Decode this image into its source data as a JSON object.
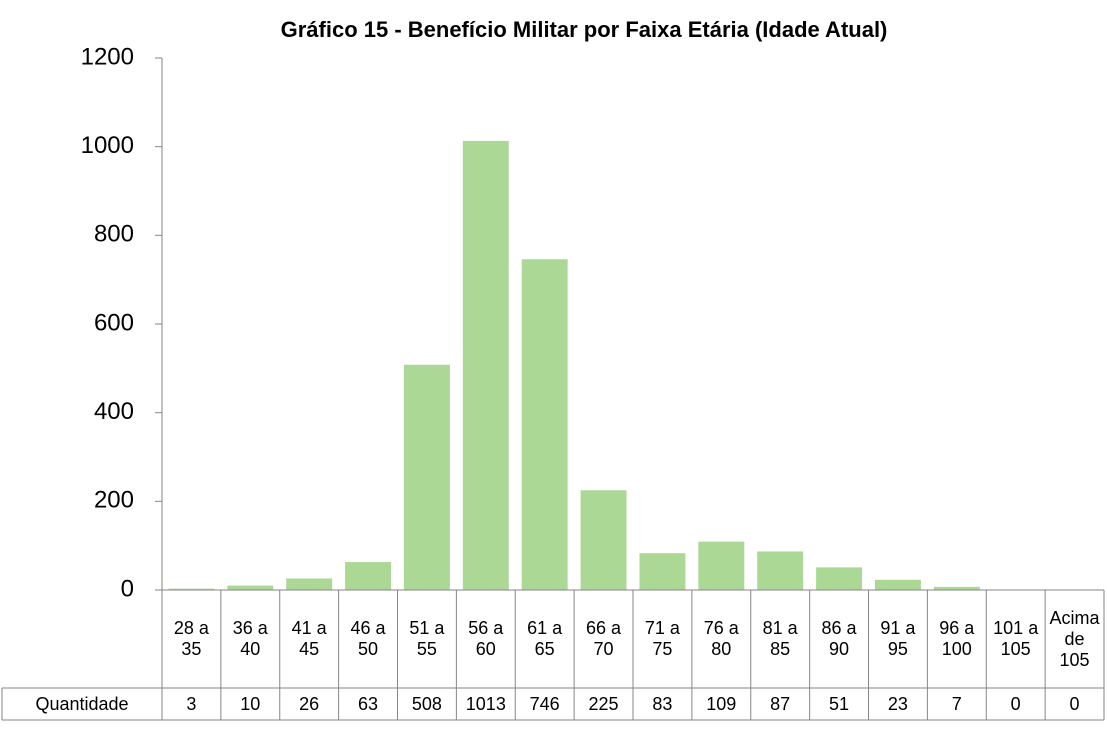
{
  "chart_data": {
    "type": "bar",
    "title": "Gráfico 15 - Benefício Militar por Faixa Etária (Idade Atual)",
    "categories": [
      "28 a 35",
      "36 a 40",
      "41 a 45",
      "46 a 50",
      "51 a 55",
      "56 a 60",
      "61 a 65",
      "66 a 70",
      "71 a 75",
      "76 a 80",
      "81 a 85",
      "86 a 90",
      "91 a 95",
      "96 a 100",
      "101 a 105",
      "Acima de 105"
    ],
    "series": [
      {
        "name": "Quantidade",
        "color": "#acd896",
        "values": [
          3,
          10,
          26,
          63,
          508,
          1013,
          746,
          225,
          83,
          109,
          87,
          51,
          23,
          7,
          0,
          0
        ]
      }
    ],
    "ylim": [
      0,
      1200
    ],
    "yticks": [
      0,
      200,
      400,
      600,
      800,
      1000,
      1200
    ],
    "grid": false,
    "data_table": true
  }
}
